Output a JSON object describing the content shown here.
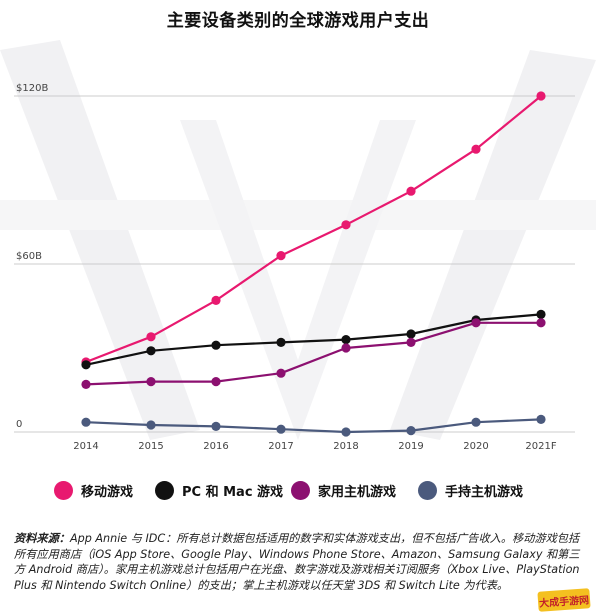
{
  "chart_data": {
    "type": "line",
    "title": "主要设备类别的全球游戏用户支出",
    "categories": [
      "2014",
      "2015",
      "2016",
      "2017",
      "2018",
      "2019",
      "2020",
      "2021F"
    ],
    "y_ticks": [
      "0",
      "$60B",
      "$120B"
    ],
    "ylim": [
      0,
      120
    ],
    "grid": true,
    "legend_position": "bottom",
    "series": [
      {
        "name": "移动游戏",
        "color": "#e8196f",
        "values": [
          25,
          34,
          47,
          63,
          74,
          86,
          101,
          120
        ]
      },
      {
        "name": "PC 和 Mac 游戏",
        "color": "#111111",
        "values": [
          24,
          29,
          31,
          32,
          33,
          35,
          40,
          42
        ]
      },
      {
        "name": "家用主机游戏",
        "color": "#8c1070",
        "values": [
          17,
          18,
          18,
          21,
          30,
          32,
          39,
          39
        ]
      },
      {
        "name": "手持主机游戏",
        "color": "#4b5a7d",
        "values": [
          3.5,
          2.5,
          2.0,
          1.0,
          0,
          0.5,
          3.5,
          4.5
        ]
      }
    ]
  },
  "source": {
    "label": "资料来源：",
    "text": "App Annie 与 IDC：所有总计数据包括适用的数字和实体游戏支出，但不包括广告收入。移动游戏包括所有应用商店（iOS App Store、Google Play、Windows Phone Store、Amazon、Samsung Galaxy 和第三方 Android 商店）。家用主机游戏总计包括用户在光盘、数字游戏及游戏相关订阅服务（Xbox Live、PlayStation Plus 和 Nintendo Switch Online）的支出；掌上主机游戏以任天堂 3DS 和 Switch Lite 为代表。"
  },
  "watermark": {
    "text": "大成手游网"
  }
}
